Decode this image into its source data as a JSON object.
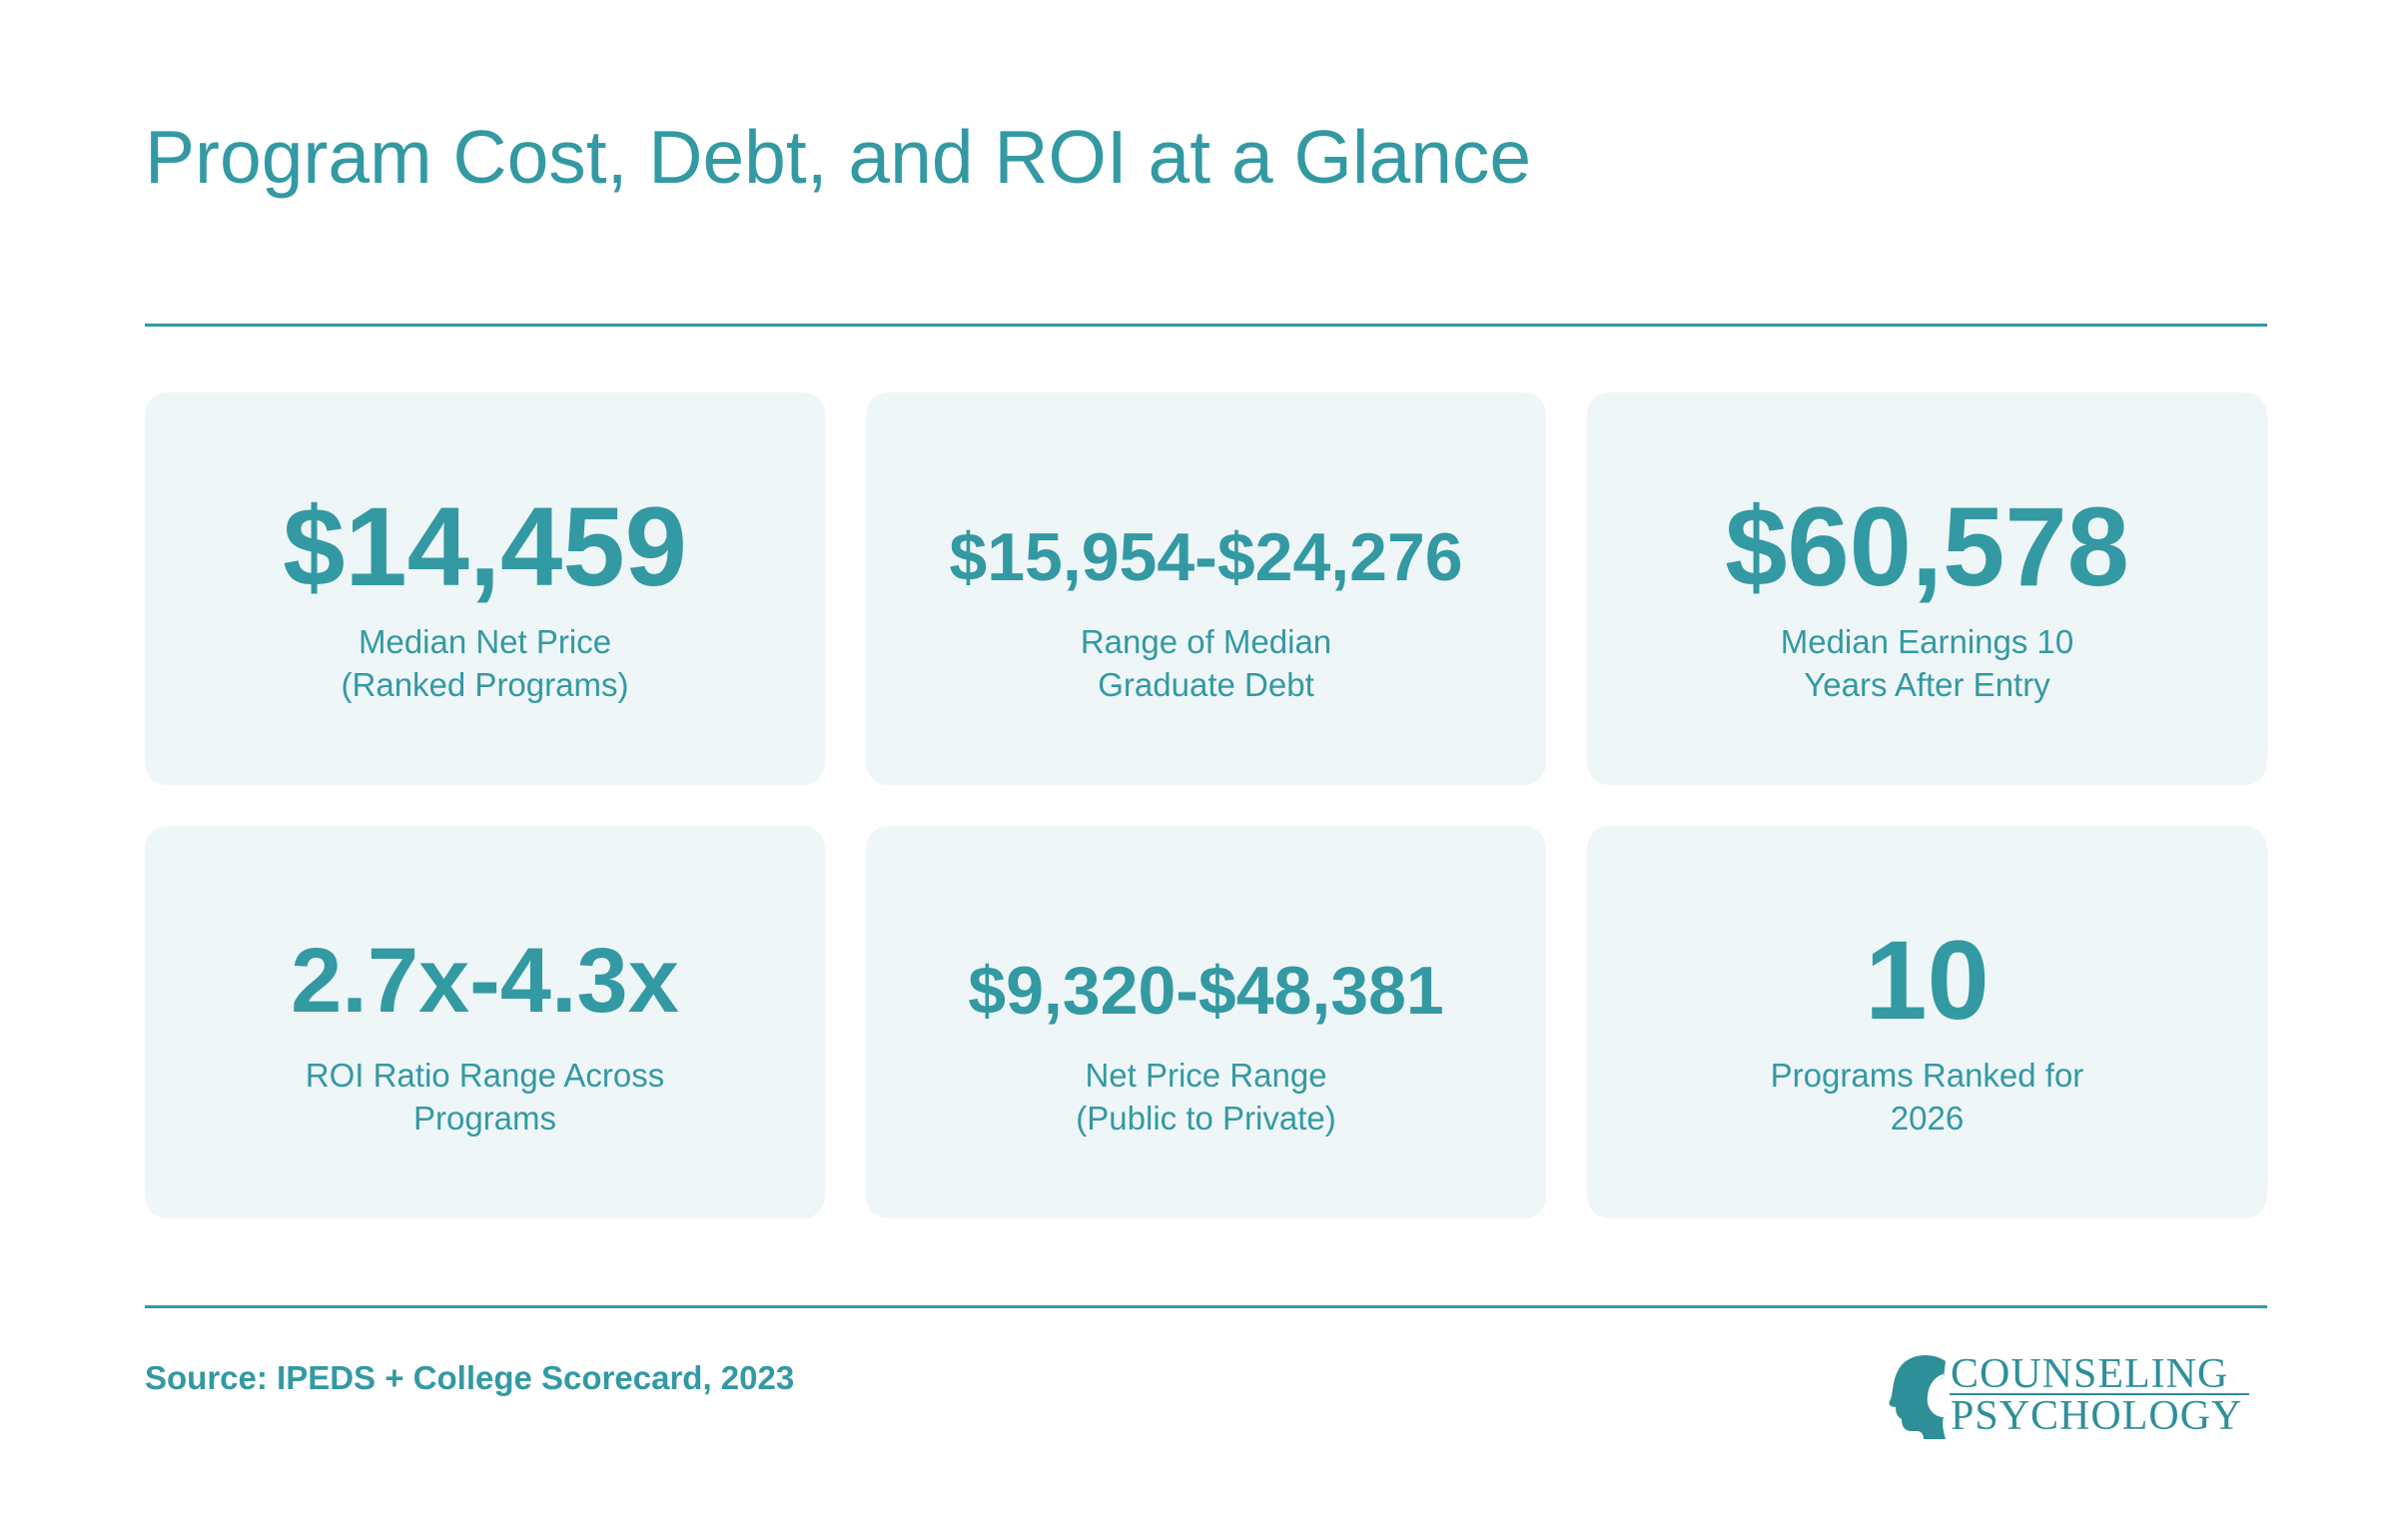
{
  "title": "Program Cost, Debt, and ROI at a Glance",
  "cards": [
    {
      "value": "$14,459",
      "label_line1": "Median Net Price",
      "label_line2": "(Ranked Programs)"
    },
    {
      "value": "$15,954-$24,276",
      "label_line1": "Range of Median",
      "label_line2": "Graduate Debt"
    },
    {
      "value": "$60,578",
      "label_line1": "Median Earnings 10",
      "label_line2": "Years After Entry"
    },
    {
      "value": "2.7x-4.3x",
      "label_line1": "ROI Ratio Range Across",
      "label_line2": "Programs"
    },
    {
      "value": "$9,320-$48,381",
      "label_line1": "Net Price Range",
      "label_line2": "(Public to Private)"
    },
    {
      "value": "10",
      "label_line1": "Programs Ranked for",
      "label_line2": "2026"
    }
  ],
  "source": "Source: IPEDS + College Scorecard, 2023",
  "logo": {
    "line1": "COUNSELING",
    "line2": "PSYCHOLOGY",
    "icon": "head-profile-icon"
  },
  "colors": {
    "accent": "#3399a3",
    "card_background": "#eff6f8",
    "page_background": "#ffffff"
  }
}
